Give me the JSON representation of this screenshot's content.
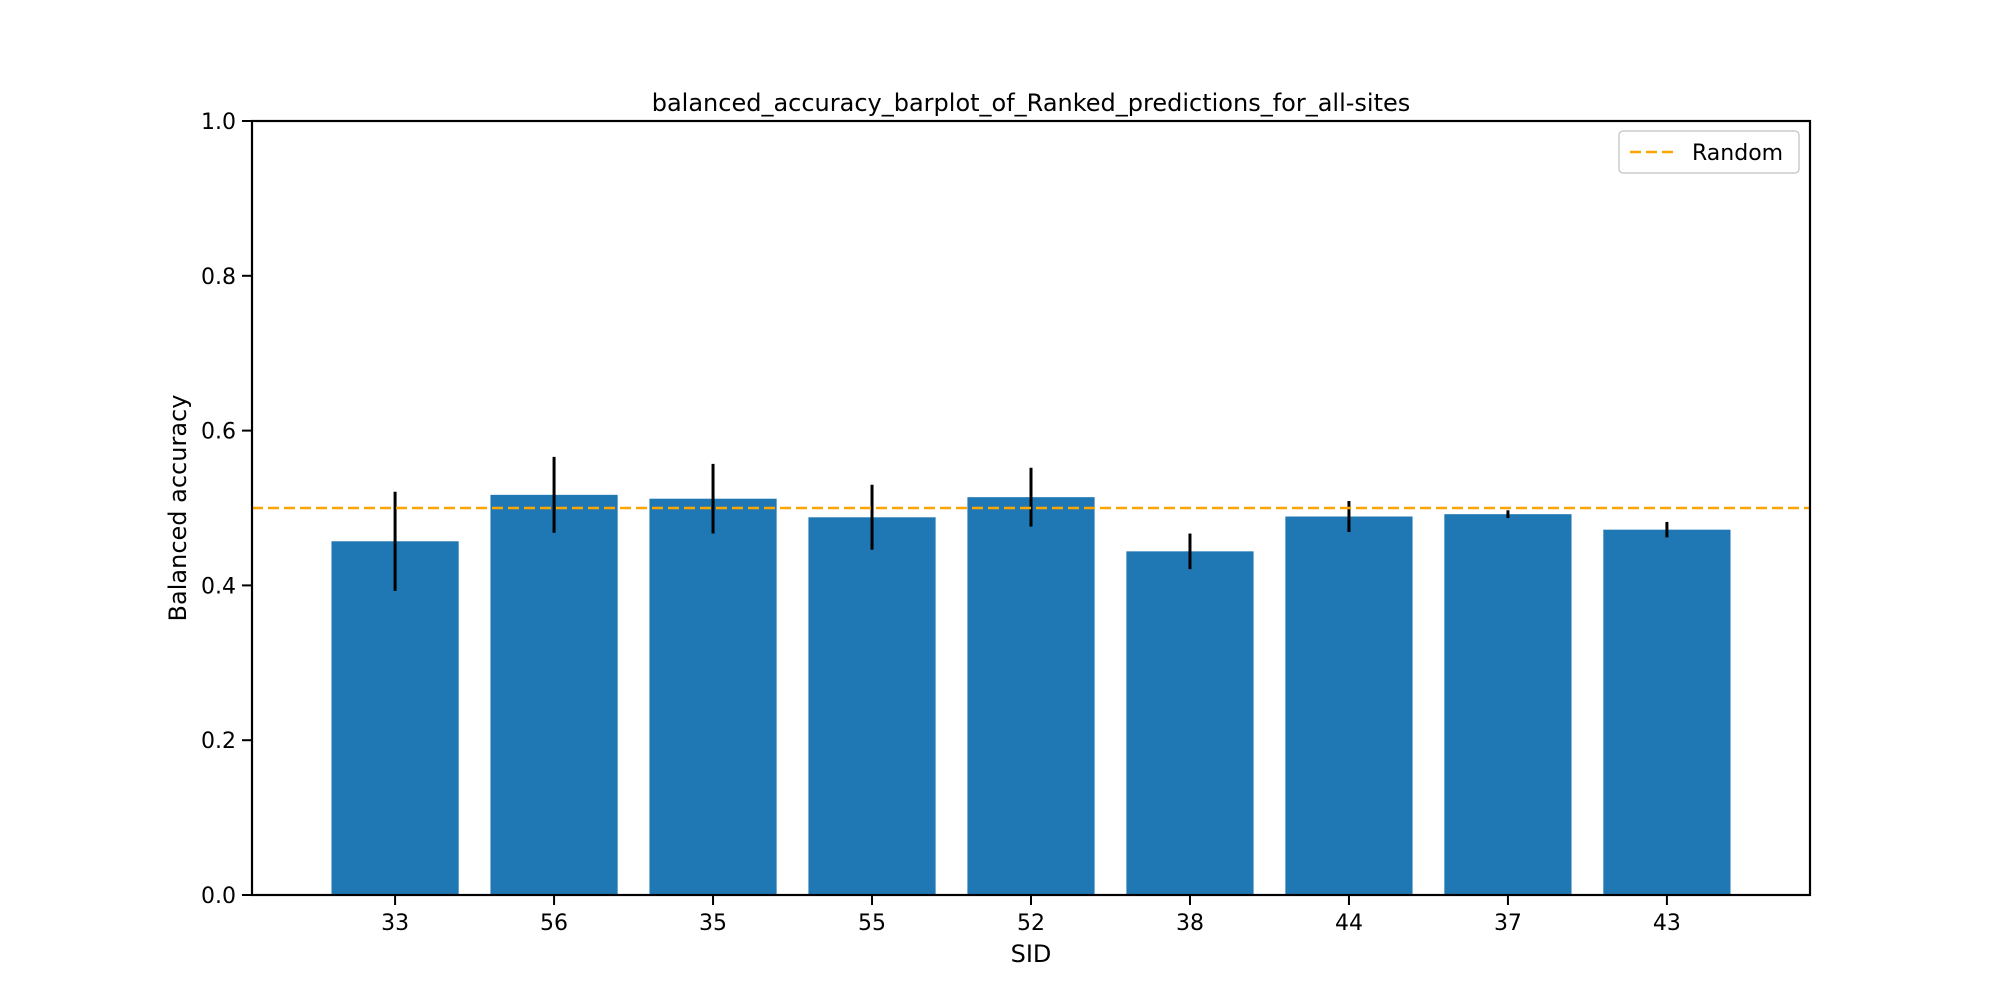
{
  "chart_data": {
    "type": "bar",
    "title": "balanced_accuracy_barplot_of_Ranked_predictions_for_all-sites",
    "xlabel": "SID",
    "ylabel": "Balanced accuracy",
    "ylim": [
      0,
      1.0
    ],
    "yticks": [
      0.0,
      0.2,
      0.4,
      0.6,
      0.8,
      1.0
    ],
    "ytick_labels": [
      "0.0",
      "0.2",
      "0.4",
      "0.6",
      "0.8",
      "1.0"
    ],
    "categories": [
      "33",
      "56",
      "35",
      "55",
      "52",
      "38",
      "44",
      "37",
      "43"
    ],
    "values": [
      0.457,
      0.517,
      0.512,
      0.488,
      0.514,
      0.444,
      0.489,
      0.492,
      0.472
    ],
    "errors": [
      0.064,
      0.049,
      0.045,
      0.042,
      0.038,
      0.023,
      0.02,
      0.005,
      0.01
    ],
    "bar_color": "#1f77b4",
    "error_color": "#000000",
    "reference_line": {
      "label": "Random",
      "value": 0.5,
      "color": "#ffa500",
      "style": "dashed"
    },
    "legend_position": "top-right",
    "grid": false
  }
}
